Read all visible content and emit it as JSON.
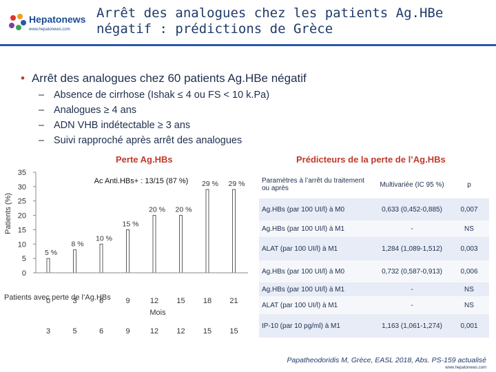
{
  "header": {
    "logo_text": "Hepatonews",
    "logo_url": "www.hepatonews.com",
    "title_line1": "Arrêt des analogues chez les patients Ag.HBe",
    "title_line2": "négatif : prédictions de Grèce"
  },
  "bullets": {
    "main": "Arrêt des analogues chez 60 patients  Ag.HBe négatif",
    "items": [
      "Absence de cirrhose (Ishak ≤ 4 ou FS < 10 k.Pa)",
      "Analogues  ≥ 4 ans",
      "ADN VHB indétectable ≥ 3 ans",
      "Suivi rapproché après arrêt des analogues"
    ]
  },
  "left_section_title": "Perte Ag.HBs",
  "right_section_title": "Prédicteurs de la perte de l’Ag.HBs",
  "chart_data": {
    "type": "bar",
    "title": "Perte Ag.HBs",
    "ylabel": "Patients (%)",
    "xlabel": "Mois",
    "ylim": [
      0,
      35
    ],
    "yticks": [
      0,
      5,
      10,
      15,
      20,
      25,
      30,
      35
    ],
    "categories": [
      "0",
      "3",
      "6",
      "9",
      "12",
      "15",
      "18",
      "21"
    ],
    "values": [
      5,
      8,
      10,
      15,
      20,
      20,
      29,
      29
    ],
    "value_labels": [
      "5 %",
      "8 %",
      "10 %",
      "15 %",
      "20 %",
      "20 %",
      "29 %",
      "29 %"
    ],
    "annotation": "Ac Anti.HBs+ : 13/15 (87 %)",
    "at_risk_label": "Patients avec perte de l’Ag.HBs",
    "at_risk": [
      "3",
      "5",
      "6",
      "9",
      "12",
      "12",
      "15",
      "15"
    ],
    "bar_color": "#ffffff",
    "grid": false
  },
  "table": {
    "headers": [
      "Paramètres à l’arrêt du traitement ou après",
      "Multivariée (IC 95 %)",
      "p"
    ],
    "rows": [
      [
        "Ag.HBs (par 100 UI/l) à M0",
        "0,633 (0,452-0,885)",
        "0,007"
      ],
      [
        "Ag.HBs (par 100 UI/l) à M1",
        "-",
        "NS"
      ],
      [
        "ALAT (par 100 UI/l) à M1",
        "1,284 (1,089-1,512)",
        "0,003"
      ],
      [
        "Ag.HBs (par 100 UI/l) à M0",
        "0,732 (0,587-0,913)",
        "0,006"
      ],
      [
        "Ag.HBs (par 100 UI/l) à M1",
        "-",
        "NS"
      ],
      [
        "ALAT (par 100 UI/l) à M1",
        "-",
        "NS"
      ],
      [
        "IP-10 (par 10 pg/ml) à M1",
        "1,163 (1,061-1,274)",
        "0,001"
      ]
    ]
  },
  "citation": "Papatheodoridis M, Grèce, EASL 2018, Abs. PS-159 actualisé",
  "footer_url": "www.hepatonews.com",
  "colors": {
    "title": "#1f3a6a",
    "accent": "#c0392b",
    "rule": "#2a58a8",
    "table_band": "#e7ecf6"
  }
}
